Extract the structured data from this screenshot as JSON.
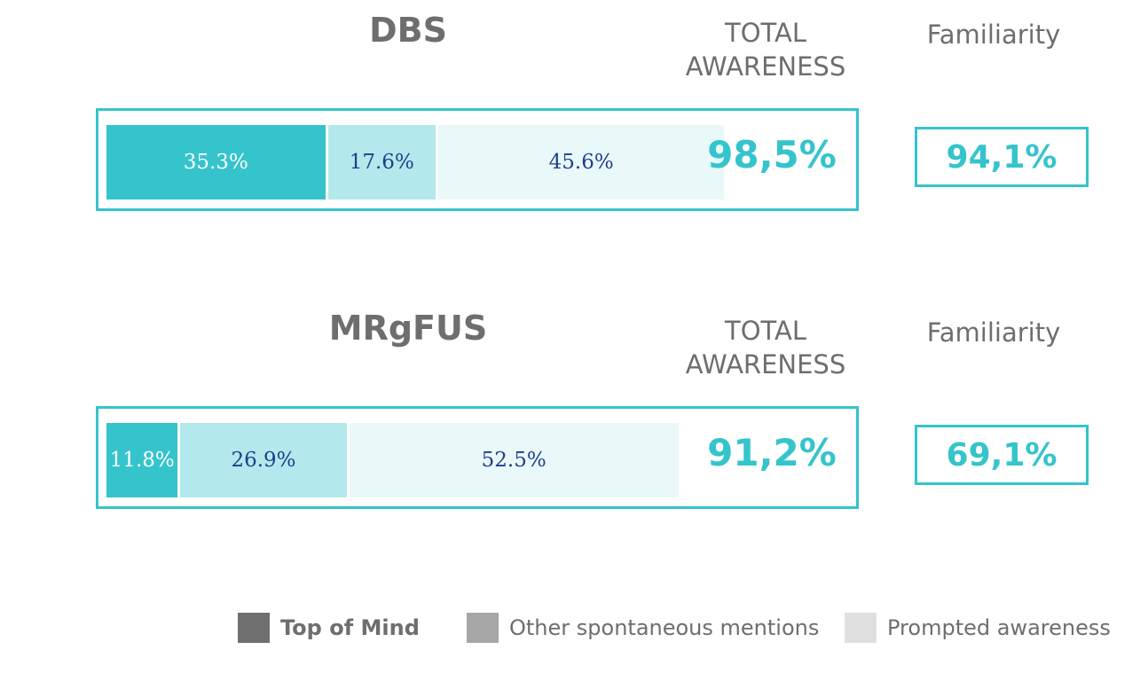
{
  "chart_data": [
    {
      "type": "bar",
      "title": "DBS",
      "total_awareness_label": "TOTAL AWARENESS",
      "total_awareness_value": "98,5%",
      "familiarity_label": "Familiarity",
      "familiarity_value": "94,1%",
      "series": [
        {
          "name": "Top of Mind",
          "value": 35.3,
          "label": "35.3%"
        },
        {
          "name": "Other spontaneous mentions",
          "value": 17.6,
          "label": "17.6%"
        },
        {
          "name": "Prompted awareness",
          "value": 45.6,
          "label": "45.6%"
        }
      ]
    },
    {
      "type": "bar",
      "title": "MRgFUS",
      "total_awareness_label": "TOTAL AWARENESS",
      "total_awareness_value": "91,2%",
      "familiarity_label": "Familiarity",
      "familiarity_value": "69,1%",
      "series": [
        {
          "name": "Top of Mind",
          "value": 11.8,
          "label": "11.8%"
        },
        {
          "name": "Other spontaneous mentions",
          "value": 26.9,
          "label": "26.9%"
        },
        {
          "name": "Prompted awareness",
          "value": 52.5,
          "label": "52.5%"
        }
      ]
    }
  ],
  "legend": [
    {
      "label": "Top of Mind",
      "color": "#707070"
    },
    {
      "label": "Other spontaneous mentions",
      "color": "#a6a6a6"
    },
    {
      "label": "Prompted awareness",
      "color": "#e0e0e0"
    }
  ],
  "colors": {
    "accent": "#35c4cc",
    "top_of_mind_bar": "#35c4cc",
    "spontaneous_bar": "#b3e9ec",
    "prompted_bar": "#e9f8f9",
    "value_text": "#1f3f8a"
  }
}
